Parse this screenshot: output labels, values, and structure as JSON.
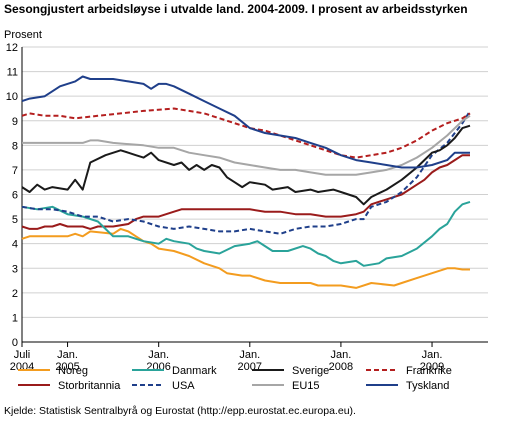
{
  "header": {
    "title": "Sesongjustert arbeidsløyse i utvalde land. 2004-2009. I prosent av arbeidsstyrken",
    "ylabel": "Prosent"
  },
  "footer": {
    "source": "Kjelde: Statistisk Sentralbyrå og Eurostat (http://epp.eurostat.ec.europa.eu)."
  },
  "chart_data": {
    "type": "line",
    "title": "Sesongjustert arbeidsløyse i utvalde land. 2004-2009. I prosent av arbeidsstyrken",
    "ylabel": "Prosent",
    "xlabel": "",
    "ylim": [
      0,
      12
    ],
    "yticks": [
      0,
      1,
      2,
      3,
      4,
      5,
      6,
      7,
      8,
      9,
      10,
      11,
      12
    ],
    "xlim": [
      "2004-07",
      "2009-06"
    ],
    "xticks": [
      {
        "t": 0,
        "line1": "Juli",
        "line2": "2004"
      },
      {
        "t": 6,
        "line1": "Jan.",
        "line2": "2005"
      },
      {
        "t": 18,
        "line1": "Jan.",
        "line2": "2006"
      },
      {
        "t": 30,
        "line1": "Jan.",
        "line2": "2007"
      },
      {
        "t": 42,
        "line1": "Jan.",
        "line2": "2008"
      },
      {
        "t": 54,
        "line1": "Jan.",
        "line2": "2009"
      }
    ],
    "grid": true,
    "legend_position": "bottom",
    "series": [
      {
        "name": "Noreg",
        "color": "#f39c1f",
        "dash": false,
        "points": [
          [
            0,
            4.2
          ],
          [
            1,
            4.3
          ],
          [
            6,
            4.3
          ],
          [
            7,
            4.4
          ],
          [
            8,
            4.3
          ],
          [
            9,
            4.5
          ],
          [
            12,
            4.4
          ],
          [
            13,
            4.6
          ],
          [
            14,
            4.5
          ],
          [
            15,
            4.3
          ],
          [
            16,
            4.1
          ],
          [
            17,
            4.0
          ],
          [
            18,
            3.8
          ],
          [
            20,
            3.7
          ],
          [
            22,
            3.5
          ],
          [
            24,
            3.2
          ],
          [
            26,
            3.0
          ],
          [
            27,
            2.8
          ],
          [
            29,
            2.7
          ],
          [
            30,
            2.7
          ],
          [
            32,
            2.5
          ],
          [
            34,
            2.4
          ],
          [
            38,
            2.4
          ],
          [
            39,
            2.3
          ],
          [
            40,
            2.3
          ],
          [
            42,
            2.3
          ],
          [
            44,
            2.2
          ],
          [
            46,
            2.4
          ],
          [
            49,
            2.3
          ],
          [
            50,
            2.4
          ],
          [
            52,
            2.6
          ],
          [
            54,
            2.8
          ],
          [
            56,
            3.0
          ],
          [
            57,
            3.0
          ],
          [
            58,
            2.95
          ],
          [
            59,
            2.95
          ]
        ]
      },
      {
        "name": "Storbritannia",
        "color": "#9a1b1b",
        "dash": false,
        "points": [
          [
            0,
            4.7
          ],
          [
            1,
            4.6
          ],
          [
            2,
            4.6
          ],
          [
            3,
            4.7
          ],
          [
            4,
            4.7
          ],
          [
            5,
            4.8
          ],
          [
            6,
            4.7
          ],
          [
            7,
            4.7
          ],
          [
            8,
            4.7
          ],
          [
            9,
            4.6
          ],
          [
            10,
            4.7
          ],
          [
            12,
            4.7
          ],
          [
            14,
            4.8
          ],
          [
            15,
            5.0
          ],
          [
            16,
            5.1
          ],
          [
            17,
            5.1
          ],
          [
            18,
            5.1
          ],
          [
            20,
            5.3
          ],
          [
            21,
            5.4
          ],
          [
            22,
            5.4
          ],
          [
            24,
            5.4
          ],
          [
            26,
            5.4
          ],
          [
            28,
            5.4
          ],
          [
            30,
            5.4
          ],
          [
            32,
            5.3
          ],
          [
            34,
            5.3
          ],
          [
            36,
            5.2
          ],
          [
            38,
            5.2
          ],
          [
            40,
            5.1
          ],
          [
            42,
            5.1
          ],
          [
            44,
            5.2
          ],
          [
            45,
            5.3
          ],
          [
            46,
            5.6
          ],
          [
            48,
            5.8
          ],
          [
            50,
            6.0
          ],
          [
            52,
            6.4
          ],
          [
            53,
            6.6
          ],
          [
            54,
            6.9
          ],
          [
            55,
            7.1
          ],
          [
            56,
            7.2
          ],
          [
            57,
            7.4
          ],
          [
            58,
            7.6
          ],
          [
            59,
            7.6
          ]
        ]
      },
      {
        "name": "Danmark",
        "color": "#2aa39a",
        "dash": false,
        "points": [
          [
            0,
            5.5
          ],
          [
            2,
            5.4
          ],
          [
            4,
            5.5
          ],
          [
            6,
            5.2
          ],
          [
            8,
            5.1
          ],
          [
            10,
            4.9
          ],
          [
            11,
            4.6
          ],
          [
            12,
            4.3
          ],
          [
            14,
            4.3
          ],
          [
            15,
            4.2
          ],
          [
            16,
            4.1
          ],
          [
            18,
            4.0
          ],
          [
            19,
            4.2
          ],
          [
            20,
            4.1
          ],
          [
            22,
            4.0
          ],
          [
            23,
            3.8
          ],
          [
            24,
            3.7
          ],
          [
            26,
            3.6
          ],
          [
            28,
            3.9
          ],
          [
            30,
            4.0
          ],
          [
            31,
            4.1
          ],
          [
            32,
            3.9
          ],
          [
            33,
            3.7
          ],
          [
            35,
            3.7
          ],
          [
            37,
            3.9
          ],
          [
            38,
            3.8
          ],
          [
            39,
            3.6
          ],
          [
            40,
            3.5
          ],
          [
            41,
            3.3
          ],
          [
            42,
            3.2
          ],
          [
            44,
            3.3
          ],
          [
            45,
            3.1
          ],
          [
            47,
            3.2
          ],
          [
            48,
            3.4
          ],
          [
            50,
            3.5
          ],
          [
            52,
            3.8
          ],
          [
            54,
            4.3
          ],
          [
            55,
            4.6
          ],
          [
            56,
            4.8
          ],
          [
            57,
            5.3
          ],
          [
            58,
            5.6
          ],
          [
            59,
            5.7
          ]
        ]
      },
      {
        "name": "USA",
        "color": "#1f3f8a",
        "dash": true,
        "points": [
          [
            0,
            5.5
          ],
          [
            2,
            5.4
          ],
          [
            4,
            5.4
          ],
          [
            6,
            5.3
          ],
          [
            8,
            5.1
          ],
          [
            10,
            5.1
          ],
          [
            12,
            4.9
          ],
          [
            14,
            5.0
          ],
          [
            16,
            4.9
          ],
          [
            18,
            4.7
          ],
          [
            20,
            4.6
          ],
          [
            22,
            4.7
          ],
          [
            24,
            4.6
          ],
          [
            26,
            4.5
          ],
          [
            28,
            4.5
          ],
          [
            30,
            4.6
          ],
          [
            32,
            4.5
          ],
          [
            34,
            4.4
          ],
          [
            36,
            4.6
          ],
          [
            38,
            4.7
          ],
          [
            40,
            4.7
          ],
          [
            42,
            4.8
          ],
          [
            43,
            4.9
          ],
          [
            44,
            5.0
          ],
          [
            45,
            5.0
          ],
          [
            46,
            5.5
          ],
          [
            48,
            5.7
          ],
          [
            50,
            6.1
          ],
          [
            52,
            6.7
          ],
          [
            54,
            7.6
          ],
          [
            56,
            8.1
          ],
          [
            57,
            8.5
          ],
          [
            58,
            8.9
          ],
          [
            59,
            9.4
          ]
        ]
      },
      {
        "name": "Sverige",
        "color": "#1a1a1a",
        "dash": false,
        "points": [
          [
            0,
            6.3
          ],
          [
            1,
            6.1
          ],
          [
            2,
            6.4
          ],
          [
            3,
            6.2
          ],
          [
            4,
            6.3
          ],
          [
            6,
            6.2
          ],
          [
            7,
            6.6
          ],
          [
            8,
            6.2
          ],
          [
            9,
            7.3
          ],
          [
            11,
            7.6
          ],
          [
            13,
            7.8
          ],
          [
            14,
            7.7
          ],
          [
            15,
            7.6
          ],
          [
            16,
            7.5
          ],
          [
            17,
            7.7
          ],
          [
            18,
            7.4
          ],
          [
            20,
            7.2
          ],
          [
            21,
            7.3
          ],
          [
            22,
            7.0
          ],
          [
            23,
            7.2
          ],
          [
            24,
            7.0
          ],
          [
            25,
            7.2
          ],
          [
            26,
            7.1
          ],
          [
            27,
            6.7
          ],
          [
            28,
            6.5
          ],
          [
            29,
            6.3
          ],
          [
            30,
            6.5
          ],
          [
            32,
            6.4
          ],
          [
            33,
            6.2
          ],
          [
            35,
            6.3
          ],
          [
            36,
            6.1
          ],
          [
            38,
            6.2
          ],
          [
            39,
            6.1
          ],
          [
            41,
            6.2
          ],
          [
            42,
            6.1
          ],
          [
            43,
            6.0
          ],
          [
            44,
            5.9
          ],
          [
            45,
            5.6
          ],
          [
            46,
            5.9
          ],
          [
            48,
            6.2
          ],
          [
            50,
            6.6
          ],
          [
            52,
            7.1
          ],
          [
            53,
            7.4
          ],
          [
            54,
            7.7
          ],
          [
            55,
            7.8
          ],
          [
            56,
            8.0
          ],
          [
            57,
            8.3
          ],
          [
            58,
            8.7
          ],
          [
            59,
            8.8
          ]
        ]
      },
      {
        "name": "EU15",
        "color": "#a6a6a6",
        "dash": false,
        "points": [
          [
            0,
            8.1
          ],
          [
            4,
            8.1
          ],
          [
            8,
            8.1
          ],
          [
            9,
            8.2
          ],
          [
            10,
            8.2
          ],
          [
            12,
            8.1
          ],
          [
            16,
            8.0
          ],
          [
            18,
            7.9
          ],
          [
            20,
            7.9
          ],
          [
            22,
            7.7
          ],
          [
            24,
            7.6
          ],
          [
            26,
            7.5
          ],
          [
            28,
            7.3
          ],
          [
            30,
            7.2
          ],
          [
            32,
            7.1
          ],
          [
            34,
            7.0
          ],
          [
            36,
            7.0
          ],
          [
            38,
            6.9
          ],
          [
            40,
            6.8
          ],
          [
            42,
            6.8
          ],
          [
            44,
            6.8
          ],
          [
            46,
            6.9
          ],
          [
            48,
            7.0
          ],
          [
            50,
            7.2
          ],
          [
            52,
            7.5
          ],
          [
            54,
            7.9
          ],
          [
            56,
            8.4
          ],
          [
            58,
            9.0
          ],
          [
            59,
            9.2
          ]
        ]
      },
      {
        "name": "Frankrike",
        "color": "#b41e1e",
        "dash": true,
        "points": [
          [
            0,
            9.2
          ],
          [
            1,
            9.3
          ],
          [
            3,
            9.2
          ],
          [
            5,
            9.2
          ],
          [
            7,
            9.1
          ],
          [
            10,
            9.2
          ],
          [
            13,
            9.3
          ],
          [
            16,
            9.4
          ],
          [
            20,
            9.5
          ],
          [
            22,
            9.4
          ],
          [
            24,
            9.3
          ],
          [
            26,
            9.1
          ],
          [
            28,
            8.9
          ],
          [
            30,
            8.7
          ],
          [
            32,
            8.6
          ],
          [
            34,
            8.4
          ],
          [
            36,
            8.2
          ],
          [
            38,
            8.0
          ],
          [
            40,
            7.8
          ],
          [
            42,
            7.6
          ],
          [
            44,
            7.5
          ],
          [
            46,
            7.6
          ],
          [
            48,
            7.7
          ],
          [
            50,
            7.9
          ],
          [
            52,
            8.2
          ],
          [
            54,
            8.6
          ],
          [
            56,
            8.9
          ],
          [
            58,
            9.1
          ],
          [
            59,
            9.3
          ]
        ]
      },
      {
        "name": "Tyskland",
        "color": "#1f3f8a",
        "dash": false,
        "points": [
          [
            0,
            9.8
          ],
          [
            1,
            9.9
          ],
          [
            3,
            10.0
          ],
          [
            5,
            10.4
          ],
          [
            7,
            10.6
          ],
          [
            8,
            10.8
          ],
          [
            9,
            10.7
          ],
          [
            12,
            10.7
          ],
          [
            14,
            10.6
          ],
          [
            16,
            10.5
          ],
          [
            17,
            10.3
          ],
          [
            18,
            10.5
          ],
          [
            19,
            10.5
          ],
          [
            20,
            10.4
          ],
          [
            22,
            10.1
          ],
          [
            24,
            9.8
          ],
          [
            26,
            9.5
          ],
          [
            28,
            9.2
          ],
          [
            30,
            8.7
          ],
          [
            32,
            8.5
          ],
          [
            34,
            8.4
          ],
          [
            36,
            8.3
          ],
          [
            38,
            8.1
          ],
          [
            40,
            7.9
          ],
          [
            42,
            7.6
          ],
          [
            44,
            7.4
          ],
          [
            46,
            7.3
          ],
          [
            48,
            7.2
          ],
          [
            50,
            7.1
          ],
          [
            52,
            7.1
          ],
          [
            54,
            7.2
          ],
          [
            56,
            7.4
          ],
          [
            57,
            7.7
          ],
          [
            58,
            7.7
          ],
          [
            59,
            7.7
          ]
        ]
      }
    ]
  }
}
